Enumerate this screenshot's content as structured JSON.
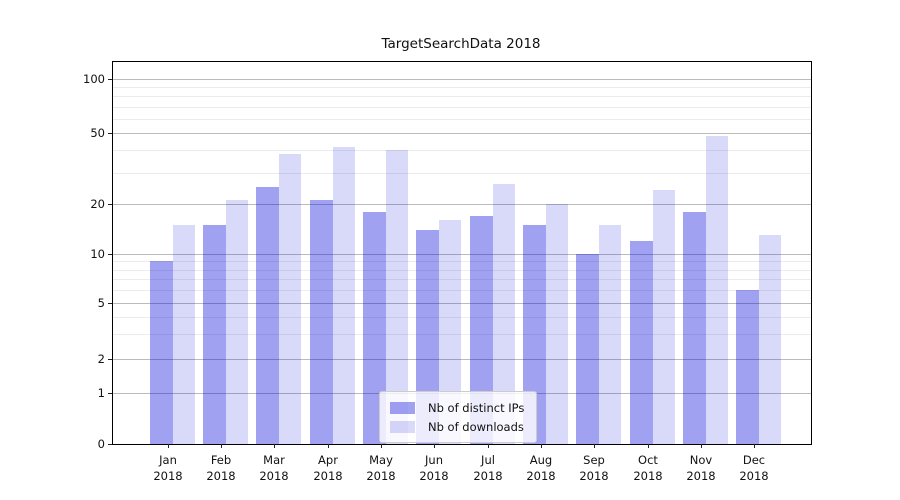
{
  "chart_data": {
    "type": "bar",
    "title": "TargetSearchData 2018",
    "categories": [
      "Jan",
      "Feb",
      "Mar",
      "Apr",
      "May",
      "Jun",
      "Jul",
      "Aug",
      "Sep",
      "Oct",
      "Nov",
      "Dec"
    ],
    "year_label": "2018",
    "series": [
      {
        "name": "Nb of distinct IPs",
        "color": "#0000dc",
        "opacity": 0.37,
        "values": [
          9,
          15,
          25,
          21,
          18,
          14,
          17,
          15,
          10,
          12,
          18,
          6
        ]
      },
      {
        "name": "Nb of downloads",
        "color": "#0000d7",
        "opacity": 0.15,
        "values": [
          15,
          21,
          38,
          42,
          40,
          16,
          26,
          20,
          15,
          24,
          48,
          13
        ]
      }
    ],
    "y_ticks": [
      0,
      1,
      2,
      5,
      10,
      20,
      50,
      100
    ],
    "y_minor_gridlines": [
      3,
      4,
      6,
      7,
      8,
      9,
      30,
      40,
      60,
      70,
      80,
      90
    ],
    "ylim": [
      0,
      120
    ],
    "scale": "log-like",
    "grid": "on",
    "legend_position": "lower center",
    "xlabel": "",
    "ylabel": ""
  }
}
